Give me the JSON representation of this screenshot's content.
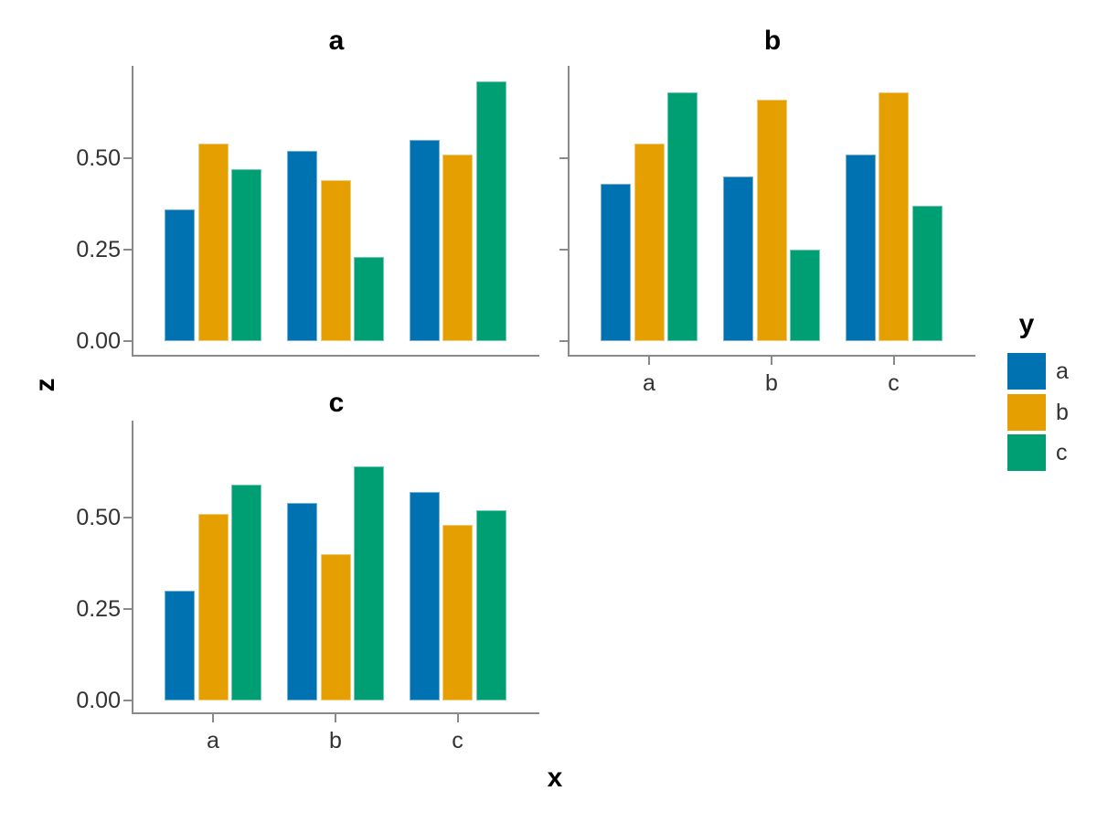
{
  "figure": {
    "background": "#ffffff",
    "xlabel": "x",
    "ylabel": "z",
    "legend": {
      "title": "y",
      "items": [
        {
          "label": "a",
          "color": "#0072B2"
        },
        {
          "label": "b",
          "color": "#E69F00"
        },
        {
          "label": "c",
          "color": "#009E73"
        }
      ]
    }
  },
  "chart_data": {
    "type": "bar",
    "title": "",
    "xlabel": "x",
    "ylabel": "z",
    "legend_title": "y",
    "legend_position": "right",
    "grid": false,
    "categories": [
      "a",
      "b",
      "c"
    ],
    "series_names": [
      "a",
      "b",
      "c"
    ],
    "colors": {
      "a": "#0072B2",
      "b": "#E69F00",
      "c": "#009E73"
    },
    "ylim": [
      0,
      0.75
    ],
    "y_ticks": [
      {
        "value": 0.0,
        "label": "0.00"
      },
      {
        "value": 0.25,
        "label": "0.25"
      },
      {
        "value": 0.5,
        "label": "0.50"
      }
    ],
    "panels": [
      {
        "facet": "a",
        "show_y_tick_labels": true,
        "show_x_tick_labels": false,
        "series": [
          {
            "name": "a",
            "values": [
              0.36,
              0.52,
              0.55
            ]
          },
          {
            "name": "b",
            "values": [
              0.54,
              0.44,
              0.51
            ]
          },
          {
            "name": "c",
            "values": [
              0.47,
              0.23,
              0.71
            ]
          }
        ]
      },
      {
        "facet": "b",
        "show_y_tick_labels": false,
        "show_x_tick_labels": true,
        "series": [
          {
            "name": "a",
            "values": [
              0.43,
              0.45,
              0.51
            ]
          },
          {
            "name": "b",
            "values": [
              0.54,
              0.66,
              0.68
            ]
          },
          {
            "name": "c",
            "values": [
              0.68,
              0.25,
              0.37
            ]
          }
        ]
      },
      {
        "facet": "c",
        "show_y_tick_labels": true,
        "show_x_tick_labels": true,
        "series": [
          {
            "name": "a",
            "values": [
              0.3,
              0.54,
              0.57
            ]
          },
          {
            "name": "b",
            "values": [
              0.51,
              0.4,
              0.48
            ]
          },
          {
            "name": "c",
            "values": [
              0.59,
              0.64,
              0.52
            ]
          }
        ]
      }
    ]
  }
}
